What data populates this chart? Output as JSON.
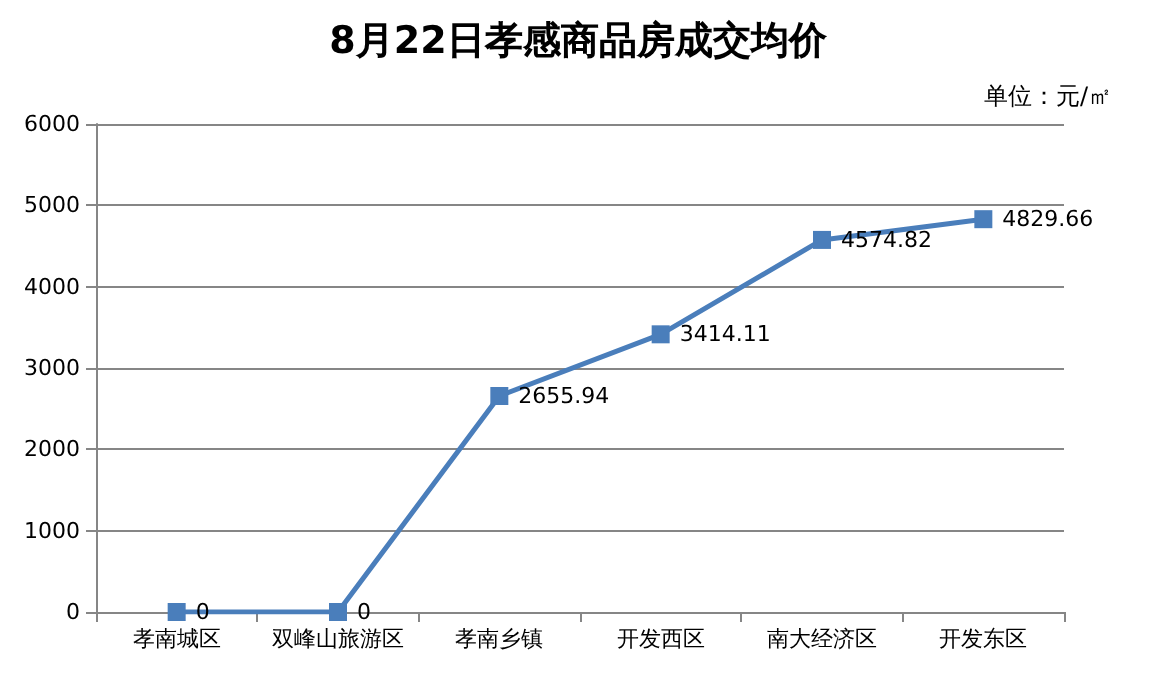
{
  "chart_data": {
    "type": "line",
    "title": "8月22日孝感商品房成交均价",
    "annotations": [
      "单位：元/㎡"
    ],
    "categories": [
      "孝南城区",
      "双峰山旅游区",
      "孝南乡镇",
      "开发西区",
      "南大经济区",
      "开发东区"
    ],
    "series": [
      {
        "color": "#4a7ebb",
        "values": [
          0,
          0,
          2655.94,
          3414.11,
          4574.82,
          4829.66
        ]
      }
    ],
    "ylim": [
      0,
      6000
    ],
    "yticks": [
      0,
      1000,
      2000,
      3000,
      4000,
      5000,
      6000
    ],
    "grid": "y",
    "marker": "square",
    "line_style": "solid",
    "data_labels": true
  }
}
